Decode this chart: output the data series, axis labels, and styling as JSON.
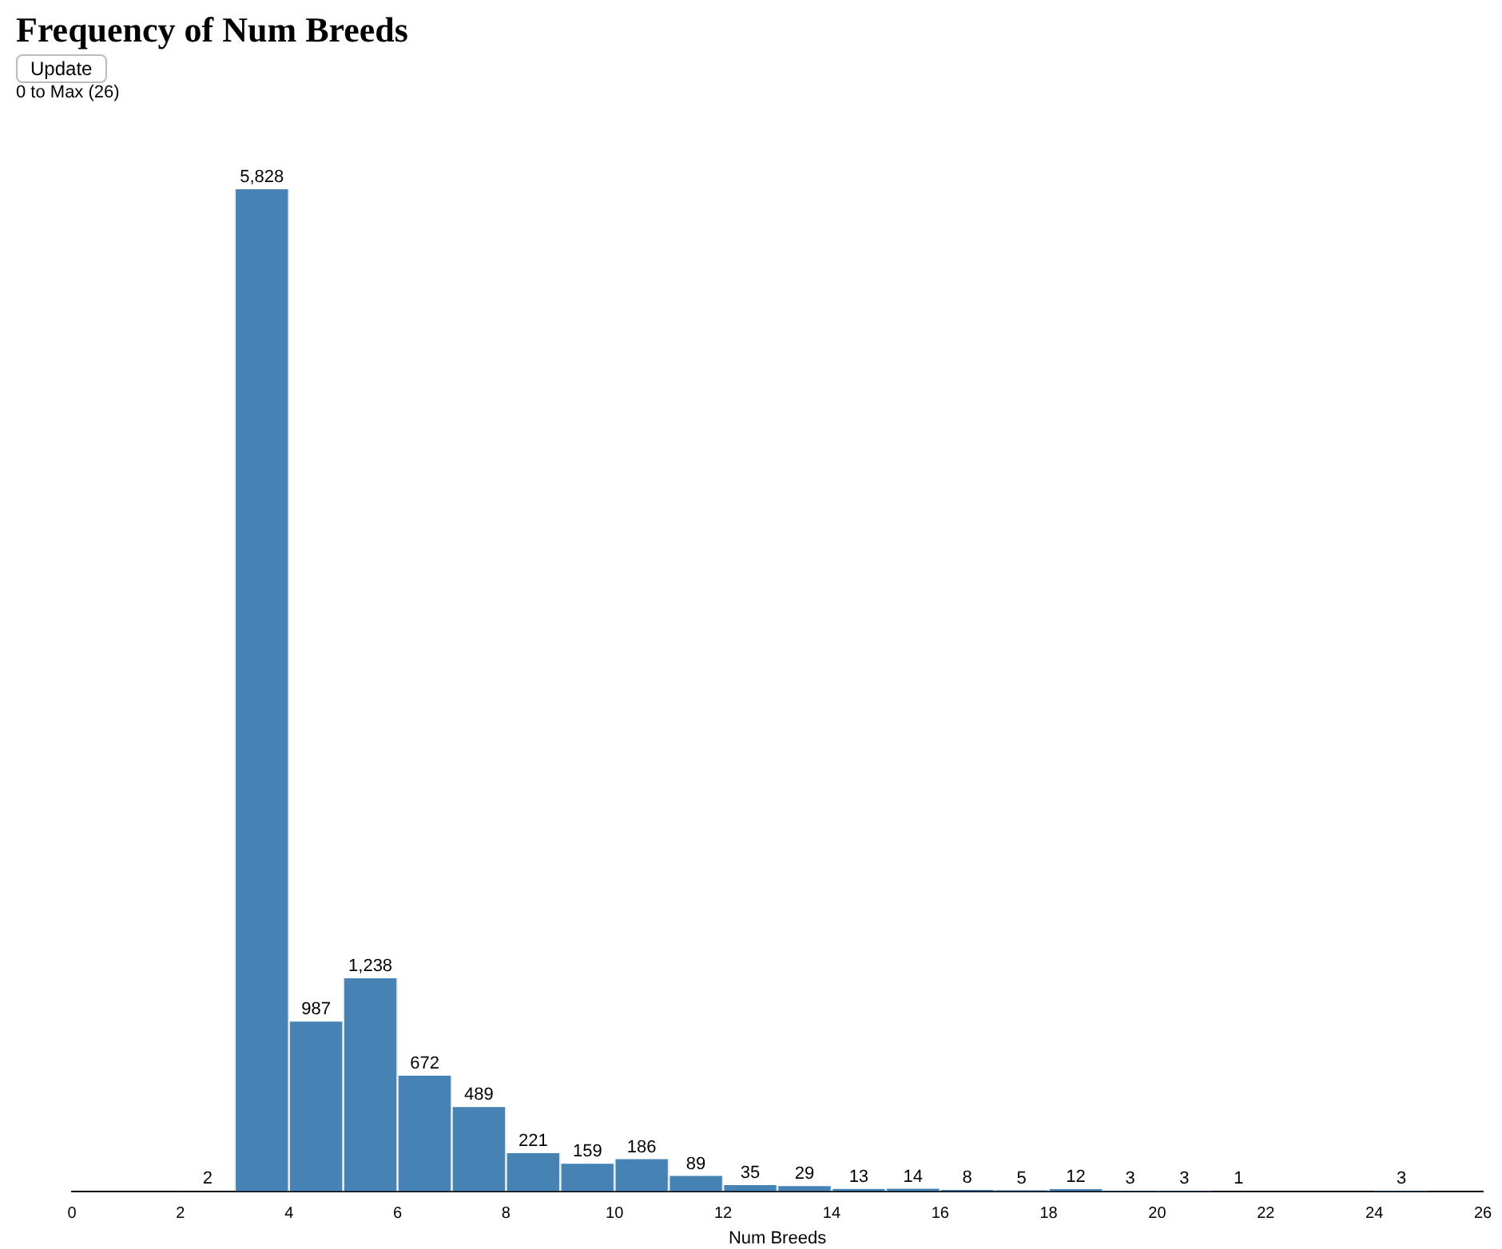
{
  "chart_data": {
    "type": "bar",
    "title": "Frequency of Num Breeds",
    "subtitle": "0 to Max (26)",
    "annotations": [
      "Update"
    ],
    "xlabel": "Num Breeds",
    "color": "#4682b4",
    "x": [
      2.5,
      3.5,
      4.5,
      5.5,
      6.5,
      7.5,
      8.5,
      9.5,
      10.5,
      11.5,
      12.5,
      13.5,
      14.5,
      15.5,
      16.5,
      17.5,
      18.5,
      19.5,
      20.5,
      21.5,
      24.5
    ],
    "values": [
      2,
      5828,
      987,
      1238,
      672,
      489,
      221,
      159,
      186,
      89,
      35,
      29,
      13,
      14,
      8,
      5,
      12,
      3,
      3,
      1,
      3
    ],
    "value_labels": [
      "2",
      "5,828",
      "987",
      "1,238",
      "672",
      "489",
      "221",
      "159",
      "186",
      "89",
      "35",
      "29",
      "13",
      "14",
      "8",
      "5",
      "12",
      "3",
      "3",
      "1",
      "3"
    ],
    "xlim": [
      0,
      26
    ],
    "xticks": [
      0,
      2,
      4,
      6,
      8,
      10,
      12,
      14,
      16,
      18,
      20,
      22,
      24,
      26
    ],
    "grid": false,
    "legend": false
  }
}
